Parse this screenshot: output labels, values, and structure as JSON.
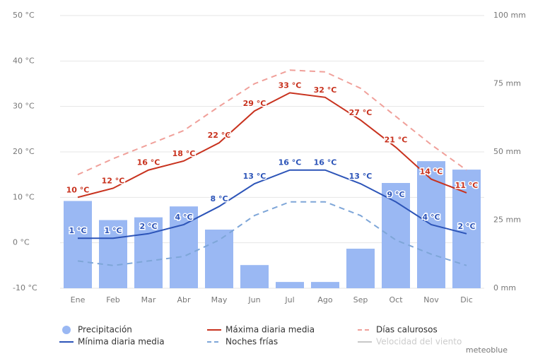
{
  "chart_data": {
    "type": "line",
    "categories": [
      "Ene",
      "Feb",
      "Mar",
      "Abr",
      "May",
      "Jun",
      "Jul",
      "Ago",
      "Sep",
      "Oct",
      "Nov",
      "Dic"
    ],
    "ylim": [
      -10,
      50
    ],
    "yticks": [
      {
        "value": -10,
        "label": "-10 °C"
      },
      {
        "value": 0,
        "label": "0 °C"
      },
      {
        "value": 10,
        "label": "10 °C"
      },
      {
        "value": 20,
        "label": "20 °C"
      },
      {
        "value": 30,
        "label": "30 °C"
      },
      {
        "value": 40,
        "label": "40 °C"
      },
      {
        "value": 50,
        "label": "50 °C"
      }
    ],
    "y2lim": [
      0,
      100
    ],
    "y2ticks": [
      {
        "value": 0,
        "label": "0 mm"
      },
      {
        "value": 25,
        "label": "25 mm"
      },
      {
        "value": 50,
        "label": "50 mm"
      },
      {
        "value": 75,
        "label": "75 mm"
      },
      {
        "value": 100,
        "label": "100 mm"
      }
    ],
    "grid": true,
    "series": [
      {
        "name": "Precipitación",
        "type": "bar",
        "axis": "y2",
        "color": "#9ab8f3",
        "values": [
          32,
          25,
          26,
          30,
          21.5,
          8.5,
          2.3,
          2.3,
          14.5,
          38.6,
          46.6,
          43.5
        ]
      },
      {
        "name": "Máxima diaria media",
        "type": "line",
        "color": "#c8321e",
        "values": [
          10,
          12,
          16,
          18,
          22,
          29,
          33,
          32,
          27,
          21,
          14,
          11
        ],
        "value_labels": [
          "10 °C",
          "12 °C",
          "16 °C",
          "18 °C",
          "22 °C",
          "29 °C",
          "33 °C",
          "32 °C",
          "27 °C",
          "21 °C",
          "14 °C",
          "11 °C"
        ]
      },
      {
        "name": "Días calurosos",
        "type": "line",
        "dash": true,
        "color": "#f0a09a",
        "values": [
          15,
          18.5,
          21.6,
          24.7,
          30,
          35,
          38,
          37.6,
          34,
          27.8,
          21.6,
          16
        ]
      },
      {
        "name": "Mínima diaria media",
        "type": "line",
        "color": "#2c54b8",
        "values": [
          1,
          1,
          2,
          4,
          8,
          13,
          16,
          16,
          13,
          9,
          4,
          2
        ],
        "value_labels": [
          "1 °C",
          "1 °C",
          "2 °C",
          "4 °C",
          "8 °C",
          "13 °C",
          "16 °C",
          "16 °C",
          "13 °C",
          "9 °C",
          "4 °C",
          "2 °C"
        ]
      },
      {
        "name": "Noches frías",
        "type": "line",
        "dash": true,
        "color": "#7ea6d8",
        "values": [
          -4,
          -5,
          -4,
          -3,
          0.6,
          6,
          9,
          9,
          6,
          0.6,
          -2.5,
          -5
        ]
      },
      {
        "name": "Velocidad del viento",
        "type": "line",
        "color": "#c8c8c8",
        "values": [
          null,
          null,
          null,
          null,
          null,
          null,
          null,
          null,
          null,
          null,
          null,
          null
        ]
      }
    ],
    "credit": "meteoblue"
  }
}
